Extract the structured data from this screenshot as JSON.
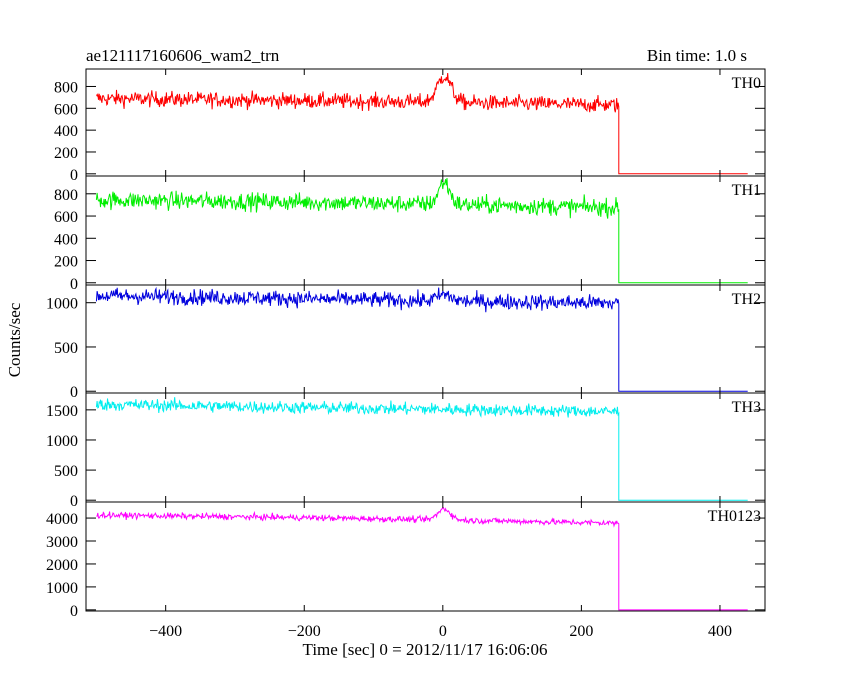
{
  "title": "ae121117160606_wam2_trn",
  "bin_time": "Bin time: 1.0 s",
  "ylabel": "Counts/sec",
  "xlabel": "Time [sec] 0 = 2012/11/17 16:06:06",
  "chart_data": {
    "type": "line",
    "xlim": [
      -515,
      465
    ],
    "x_ticks": [
      -400,
      -200,
      0,
      200,
      400
    ],
    "x_tick_labels": [
      "−400",
      "−200",
      "0",
      "200",
      "400"
    ],
    "x_data_range": [
      -500,
      440
    ],
    "cutoff_time": 254,
    "grid": false,
    "panels": [
      {
        "name": "TH0",
        "color": "#ff0000",
        "ylim": [
          -20,
          960
        ],
        "y_ticks": [
          0,
          200,
          400,
          600,
          800
        ],
        "y_tick_labels": [
          "0",
          "200",
          "400",
          "600",
          "800"
        ],
        "baseline_trend": [
          {
            "t": -500,
            "v": 690
          },
          {
            "t": -200,
            "v": 670
          },
          {
            "t": 0,
            "v": 655
          },
          {
            "t": 250,
            "v": 630
          }
        ],
        "noise": 38,
        "peak": {
          "t": 2,
          "height": 240,
          "width": 10
        },
        "after_cutoff": 0
      },
      {
        "name": "TH1",
        "color": "#00ee00",
        "ylim": [
          -20,
          960
        ],
        "y_ticks": [
          0,
          200,
          400,
          600,
          800
        ],
        "y_tick_labels": [
          "0",
          "200",
          "400",
          "600",
          "800"
        ],
        "baseline_trend": [
          {
            "t": -500,
            "v": 745
          },
          {
            "t": -200,
            "v": 725
          },
          {
            "t": 0,
            "v": 705
          },
          {
            "t": 250,
            "v": 675
          }
        ],
        "noise": 42,
        "peak": {
          "t": 2,
          "height": 200,
          "width": 8
        },
        "after_cutoff": 0
      },
      {
        "name": "TH2",
        "color": "#0000dd",
        "ylim": [
          -20,
          1200
        ],
        "y_ticks": [
          0,
          500,
          1000
        ],
        "y_tick_labels": [
          "0",
          "500",
          "1000"
        ],
        "baseline_trend": [
          {
            "t": -500,
            "v": 1080
          },
          {
            "t": -200,
            "v": 1045
          },
          {
            "t": 0,
            "v": 1020
          },
          {
            "t": 250,
            "v": 995
          }
        ],
        "noise": 48,
        "peak": {
          "t": 2,
          "height": 70,
          "width": 10
        },
        "after_cutoff": 0
      },
      {
        "name": "TH3",
        "color": "#00eeee",
        "ylim": [
          -30,
          1780
        ],
        "y_ticks": [
          0,
          500,
          1000,
          1500
        ],
        "y_tick_labels": [
          "0",
          "500",
          "1000",
          "1500"
        ],
        "baseline_trend": [
          {
            "t": -500,
            "v": 1590
          },
          {
            "t": -200,
            "v": 1540
          },
          {
            "t": 0,
            "v": 1510
          },
          {
            "t": 250,
            "v": 1470
          }
        ],
        "noise": 55,
        "peak": {
          "t": 2,
          "height": 0,
          "width": 10
        },
        "after_cutoff": 0
      },
      {
        "name": "TH0123",
        "color": "#ff00ff",
        "ylim": [
          -50,
          4700
        ],
        "y_ticks": [
          0,
          1000,
          2000,
          3000,
          4000
        ],
        "y_tick_labels": [
          "0",
          "1000",
          "2000",
          "3000",
          "4000"
        ],
        "baseline_trend": [
          {
            "t": -500,
            "v": 4130
          },
          {
            "t": -200,
            "v": 4020
          },
          {
            "t": 0,
            "v": 3920
          },
          {
            "t": 250,
            "v": 3780
          }
        ],
        "noise": 70,
        "peak": {
          "t": 2,
          "height": 480,
          "width": 9
        },
        "after_cutoff": 0
      }
    ]
  }
}
